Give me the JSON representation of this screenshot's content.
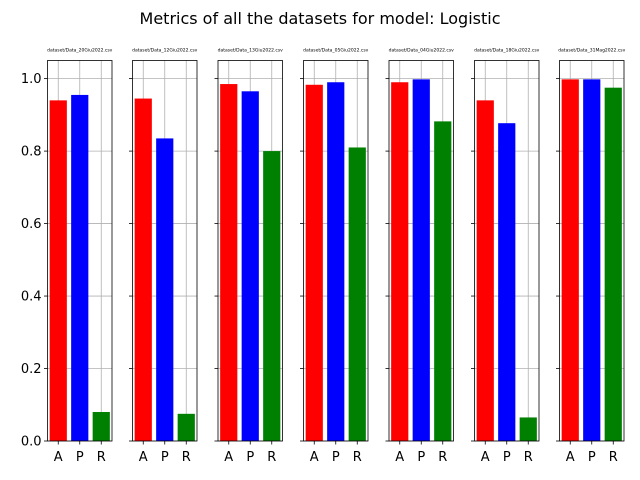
{
  "chart_data": {
    "type": "bar",
    "title": "Metrics of all the datasets for model: Logistic",
    "categories": [
      "A",
      "P",
      "R"
    ],
    "colors": [
      "#ff0000",
      "#0000ff",
      "#008000"
    ],
    "ylim": [
      0,
      1.05
    ],
    "yticks": [
      "0.0",
      "0.2",
      "0.4",
      "0.6",
      "0.8",
      "1.0"
    ],
    "grid": true,
    "subplots": [
      {
        "title": "dataset/Data_20Giu2022.csv",
        "values": [
          0.94,
          0.955,
          0.08
        ]
      },
      {
        "title": "dataset/Data_12Giu2022.csv",
        "values": [
          0.945,
          0.835,
          0.075
        ]
      },
      {
        "title": "dataset/Data_13Giu2022.csv",
        "values": [
          0.985,
          0.965,
          0.8
        ]
      },
      {
        "title": "dataset/Data_05Giu2022.csv",
        "values": [
          0.983,
          0.99,
          0.81
        ]
      },
      {
        "title": "dataset/Data_04Giu2022.csv",
        "values": [
          0.99,
          0.998,
          0.882
        ]
      },
      {
        "title": "dataset/Data_18Giu2022.csv",
        "values": [
          0.94,
          0.877,
          0.065
        ]
      },
      {
        "title": "dataset/Data_31Mag2022.csv",
        "values": [
          0.998,
          0.998,
          0.975
        ]
      }
    ]
  }
}
